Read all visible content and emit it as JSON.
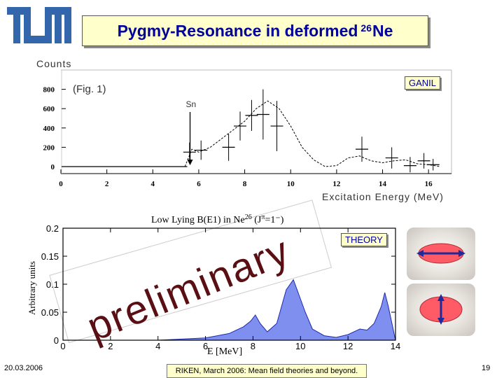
{
  "header": {
    "logo_text": "TUM",
    "title_main": "Pygmy-Resonance in deformed ",
    "title_sup": "26",
    "title_tail": "Ne"
  },
  "chart_data": [
    {
      "type": "scatter",
      "label": "GANIL",
      "annotation": "(Fig. 1)",
      "sn_label": "Sn",
      "ylabel": "Counts",
      "xlabel": "Excitation Energy (MeV)",
      "xlim": [
        0,
        17
      ],
      "ylim": [
        0,
        1000
      ],
      "x_ticks": [
        0,
        2,
        4,
        6,
        8,
        10,
        12,
        14,
        16
      ],
      "y_ticks": [
        0,
        200,
        400,
        600,
        800
      ],
      "sn_energy": 5.5,
      "points": [
        {
          "x": 5.6,
          "y": 150,
          "err": 100
        },
        {
          "x": 6.1,
          "y": 170,
          "err": 100
        },
        {
          "x": 7.3,
          "y": 200,
          "err": 140
        },
        {
          "x": 7.8,
          "y": 420,
          "err": 150
        },
        {
          "x": 8.3,
          "y": 530,
          "err": 160
        },
        {
          "x": 8.8,
          "y": 540,
          "err": 260
        },
        {
          "x": 9.4,
          "y": 420,
          "err": 260
        },
        {
          "x": 13.1,
          "y": 180,
          "err": 130
        },
        {
          "x": 14.4,
          "y": 90,
          "err": 110
        },
        {
          "x": 15.2,
          "y": 10,
          "err": 90
        },
        {
          "x": 15.8,
          "y": 60,
          "err": 80
        },
        {
          "x": 16.2,
          "y": 20,
          "err": 60
        }
      ],
      "fit_curve": {
        "x": [
          5.4,
          5.7,
          6.0,
          6.5,
          7.0,
          7.5,
          8.0,
          8.5,
          9.0,
          9.5,
          10.0,
          10.5,
          11.0,
          11.5,
          12.0,
          12.5,
          13.0,
          13.5,
          14.0,
          14.5,
          15.0,
          15.5,
          16.0,
          16.5
        ],
        "y": [
          0,
          180,
          150,
          200,
          290,
          380,
          470,
          600,
          680,
          600,
          420,
          200,
          70,
          0,
          10,
          90,
          110,
          60,
          40,
          60,
          70,
          30,
          20,
          0
        ]
      }
    },
    {
      "type": "area",
      "label": "THEORY",
      "title": "Low Lying B(E1) in Ne",
      "title_sup": "26",
      "title_tail": " (J",
      "title_pi_sup": "π",
      "title_end": "=1⁻)",
      "watermark": "preliminary",
      "ylabel": "Arbitrary units",
      "xlabel": "E [MeV]",
      "xlim": [
        0,
        14
      ],
      "ylim": [
        0,
        0.2
      ],
      "x_ticks": [
        0,
        2,
        4,
        6,
        8,
        10,
        12,
        14
      ],
      "y_ticks": [
        0,
        0.05,
        0.1,
        0.15,
        0.2
      ],
      "y_tick_labels": [
        "0",
        "0.05",
        "0.1",
        "0.15",
        "0.2"
      ],
      "x": [
        0,
        2.0,
        4.0,
        5.0,
        6.0,
        6.5,
        7.0,
        7.3,
        7.6,
        7.9,
        8.1,
        8.3,
        8.6,
        9.0,
        9.4,
        9.7,
        9.9,
        10.2,
        10.5,
        11.0,
        11.5,
        12.0,
        12.5,
        12.8,
        13.1,
        13.4,
        13.55,
        13.7,
        14.0
      ],
      "values": [
        0,
        0,
        0,
        0.002,
        0.004,
        0.008,
        0.012,
        0.018,
        0.024,
        0.034,
        0.045,
        0.03,
        0.015,
        0.03,
        0.09,
        0.108,
        0.085,
        0.05,
        0.02,
        0.008,
        0.005,
        0.01,
        0.02,
        0.018,
        0.03,
        0.06,
        0.085,
        0.06,
        0.0
      ],
      "fill_color": "#7f8ff0"
    }
  ],
  "footer": {
    "date": "20.03.2006",
    "center": "RIKEN, March 2006: Mean field theories and beyond.",
    "page": "19"
  }
}
